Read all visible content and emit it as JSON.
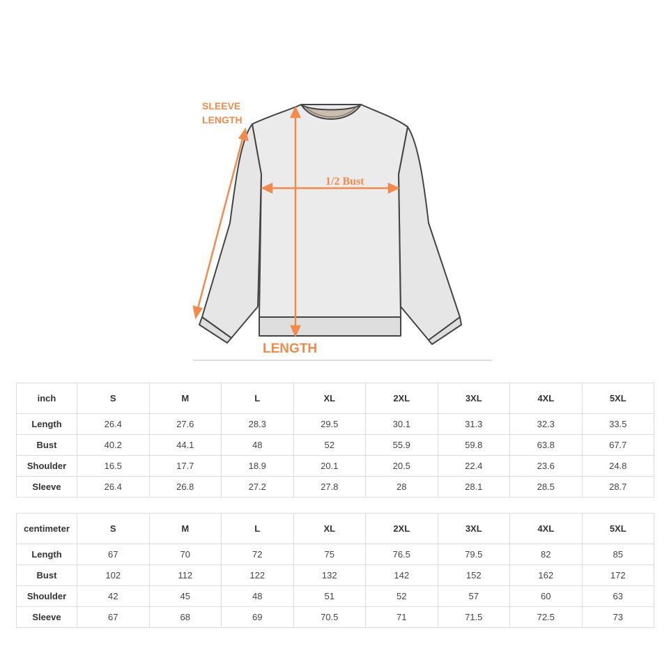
{
  "figure": {
    "labels": {
      "sleeve_line1": "SLEEVE",
      "sleeve_line2": "LENGTH",
      "bust": "1/2 Bust",
      "length": "LENGTH"
    },
    "colors": {
      "accent": "#f28a4c",
      "garment": "#e8e8e8",
      "outline": "#444444"
    }
  },
  "sizes": [
    "S",
    "M",
    "L",
    "XL",
    "2XL",
    "3XL",
    "4XL",
    "5XL"
  ],
  "tables": [
    {
      "unit": "inch",
      "rows": [
        {
          "label": "Length",
          "values": [
            "26.4",
            "27.6",
            "28.3",
            "29.5",
            "30.1",
            "31.3",
            "32.3",
            "33.5"
          ]
        },
        {
          "label": "Bust",
          "values": [
            "40.2",
            "44.1",
            "48",
            "52",
            "55.9",
            "59.8",
            "63.8",
            "67.7"
          ]
        },
        {
          "label": "Shoulder",
          "values": [
            "16.5",
            "17.7",
            "18.9",
            "20.1",
            "20.5",
            "22.4",
            "23.6",
            "24.8"
          ]
        },
        {
          "label": "Sleeve",
          "values": [
            "26.4",
            "26.8",
            "27.2",
            "27.8",
            "28",
            "28.1",
            "28.5",
            "28.7"
          ]
        }
      ]
    },
    {
      "unit": "centimeter",
      "rows": [
        {
          "label": "Length",
          "values": [
            "67",
            "70",
            "72",
            "75",
            "76.5",
            "79.5",
            "82",
            "85"
          ]
        },
        {
          "label": "Bust",
          "values": [
            "102",
            "112",
            "122",
            "132",
            "142",
            "152",
            "162",
            "172"
          ]
        },
        {
          "label": "Shoulder",
          "values": [
            "42",
            "45",
            "48",
            "51",
            "52",
            "57",
            "60",
            "63"
          ]
        },
        {
          "label": "Sleeve",
          "values": [
            "67",
            "68",
            "69",
            "70.5",
            "71",
            "71.5",
            "72.5",
            "73"
          ]
        }
      ]
    }
  ]
}
